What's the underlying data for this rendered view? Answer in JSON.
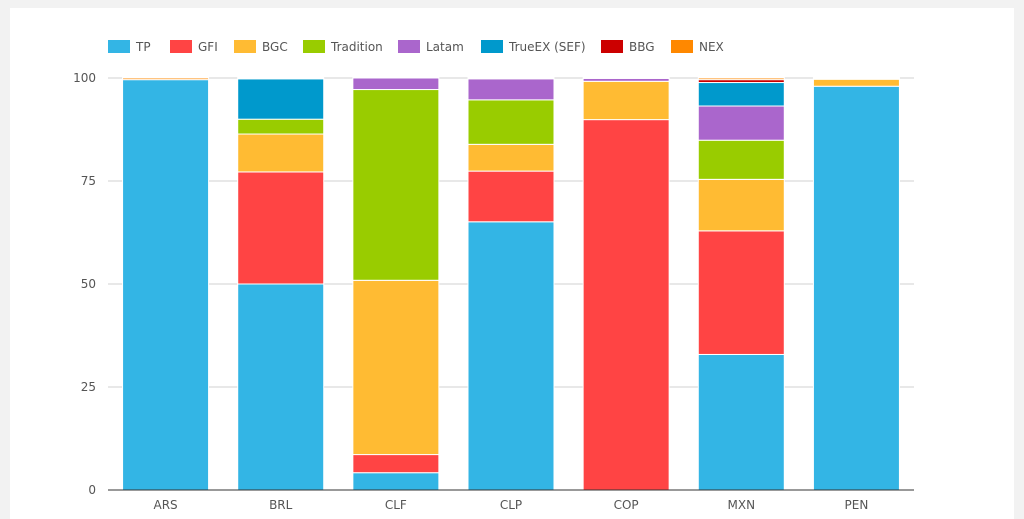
{
  "chart_data": {
    "type": "bar",
    "stacked": true,
    "categories": [
      "ARS",
      "BRL",
      "CLF",
      "CLP",
      "COP",
      "MXN",
      "PEN"
    ],
    "ylim": [
      0,
      100
    ],
    "yticks": [
      0,
      25,
      50,
      75,
      100
    ],
    "grid": true,
    "legend_position": "top-left",
    "series": [
      {
        "name": "TP",
        "color": "#33b5e5",
        "values": [
          99.6,
          50,
          4.2,
          65.1,
          0,
          32.9,
          98
        ]
      },
      {
        "name": "GFI",
        "color": "#ff4444",
        "values": [
          0,
          27.2,
          4.4,
          12.3,
          89.9,
          30,
          0
        ]
      },
      {
        "name": "BGC",
        "color": "#ffbb33",
        "values": [
          0,
          9.2,
          42.3,
          6.5,
          9.3,
          12.5,
          1.7
        ]
      },
      {
        "name": "Tradition",
        "color": "#99cc00",
        "values": [
          0,
          3.6,
          46.3,
          10.8,
          0,
          9.5,
          0
        ]
      },
      {
        "name": "Latam",
        "color": "#aa66cc",
        "values": [
          0,
          0,
          2.8,
          5.1,
          0.7,
          8.3,
          0.2
        ]
      },
      {
        "name": "TrueEX (SEF)",
        "color": "#0099cc",
        "values": [
          0,
          9.8,
          0,
          0,
          0,
          5.7,
          0
        ]
      },
      {
        "name": "BBG",
        "color": "#cc0000",
        "values": [
          0,
          0,
          0,
          0,
          0,
          0.7,
          0
        ]
      },
      {
        "name": "NEX",
        "color": "#ff8800",
        "values": [
          0.4,
          0.2,
          0,
          0.2,
          0.1,
          0.4,
          0.1
        ]
      }
    ]
  }
}
